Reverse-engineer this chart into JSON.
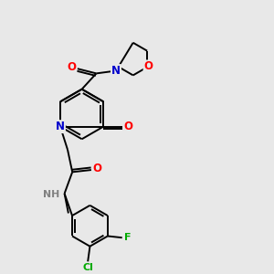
{
  "background_color": "#e8e8e8",
  "bond_color": "#000000",
  "atom_colors": {
    "N": "#0000cc",
    "O": "#ff0000",
    "Cl": "#00aa00",
    "F": "#00aa00",
    "NH": "#808080",
    "C": "#000000"
  },
  "figsize": [
    3.0,
    3.0
  ],
  "dpi": 100
}
